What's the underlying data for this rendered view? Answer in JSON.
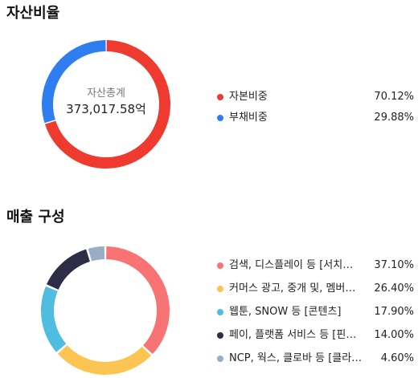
{
  "sections": {
    "assets_title": "자산비율",
    "sales_title": "매출 구성"
  },
  "center": {
    "label": "자산총계",
    "value": "373,017.58억"
  },
  "chart_data": [
    {
      "type": "pie",
      "title": "자산비율",
      "categories": [
        "자본비중",
        "부채비중"
      ],
      "values": [
        70.12,
        29.88
      ],
      "labels": [
        "70.12%",
        "29.88%"
      ],
      "colors": [
        "#ee3a2f",
        "#2f7ef0"
      ],
      "legend": "right"
    },
    {
      "type": "pie",
      "title": "매출 구성",
      "categories": [
        "검색, 디스플레이 등 [서치…",
        "커머스 광고, 중개 및, 멤버…",
        "웹툰, SNOW 등 [콘텐츠]",
        "페이, 플랫폼 서비스 등 [핀…",
        "NCP, 웍스, 클로바 등 [클라…"
      ],
      "values": [
        37.1,
        26.4,
        17.9,
        14.0,
        4.6
      ],
      "labels": [
        "37.10%",
        "26.40%",
        "17.90%",
        "14.00%",
        "4.60%"
      ],
      "colors": [
        "#f87474",
        "#fcc450",
        "#4fbde0",
        "#2d2d45",
        "#9aadc6"
      ],
      "legend": "right"
    }
  ]
}
